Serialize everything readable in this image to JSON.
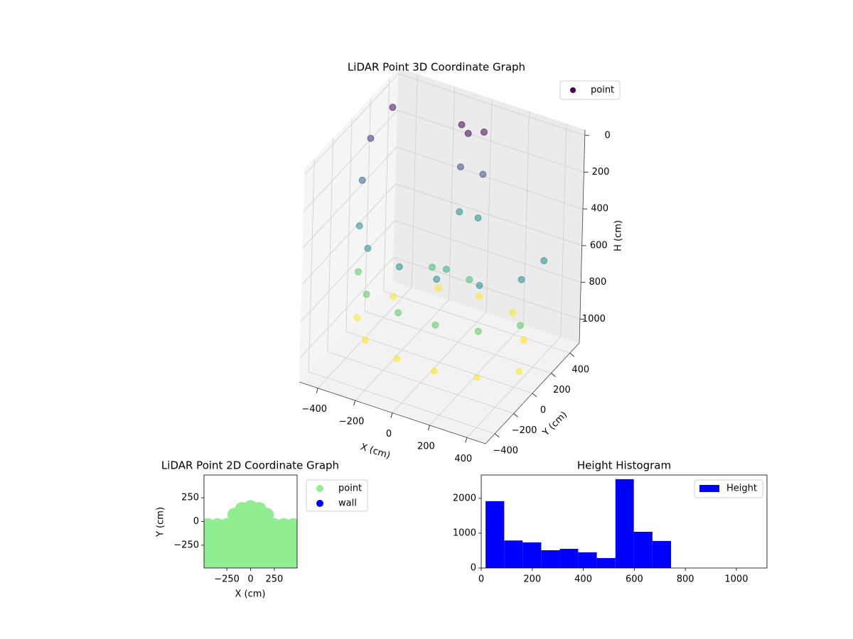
{
  "chart_data": [
    {
      "type": "scatter3d",
      "title": "LiDAR Point 3D Coordinate Graph",
      "xlabel": "X (cm)",
      "ylabel": "Y (cm)",
      "zlabel": "H (cm)",
      "xlim": [
        -500,
        500
      ],
      "ylim": [
        -500,
        500
      ],
      "zlim": [
        1130,
        -30
      ],
      "xticks": [
        {
          "value": -400,
          "label": "−400"
        },
        {
          "value": -200,
          "label": "−200"
        },
        0,
        200,
        400
      ],
      "yticks": [
        {
          "value": -400,
          "label": "−400"
        },
        {
          "value": -200,
          "label": "−200"
        },
        0,
        200,
        400
      ],
      "zticks": [
        0,
        200,
        400,
        600,
        800,
        1000
      ],
      "grid": true,
      "colormap": "viridis",
      "legend": "upper right",
      "series": [
        {
          "name": "point",
          "color": "#440154",
          "x": [
            -420,
            -420,
            -420,
            -300,
            -300,
            -300,
            -100,
            -100,
            -100,
            100,
            100,
            100,
            300,
            300,
            300,
            450,
            450,
            450,
            -470,
            -430,
            -460,
            -60,
            60,
            0,
            -60,
            60,
            -50,
            50,
            -350,
            350,
            0,
            -200,
            200,
            -100,
            100,
            0,
            470
          ],
          "y": [
            -50,
            -50,
            -50,
            -200,
            -200,
            -200,
            -260,
            -260,
            -260,
            -260,
            -260,
            -260,
            -200,
            -200,
            -200,
            -50,
            -50,
            -50,
            150,
            300,
            50,
            300,
            300,
            250,
            300,
            300,
            280,
            280,
            200,
            200,
            420,
            380,
            380,
            100,
            100,
            50,
            150
          ],
          "z": [
            500,
            750,
            1000,
            500,
            750,
            1000,
            500,
            750,
            1000,
            500,
            750,
            1000,
            500,
            750,
            1000,
            500,
            750,
            1000,
            150,
            50,
            320,
            20,
            20,
            20,
            250,
            250,
            480,
            480,
            1000,
            1000,
            1000,
            1000,
            1000,
            700,
            700,
            650,
            500
          ]
        }
      ]
    },
    {
      "type": "scatter",
      "title": "LiDAR Point 2D Coordinate Graph",
      "xlabel": "X (cm)",
      "ylabel": "Y (cm)",
      "xlim": [
        -490,
        490
      ],
      "ylim": [
        -490,
        490
      ],
      "xticks": [
        {
          "value": -250,
          "label": "−250"
        },
        0,
        250
      ],
      "yticks": [
        {
          "value": -250,
          "label": "−250"
        },
        0,
        250
      ],
      "legend": "outside right",
      "series": [
        {
          "name": "point",
          "color": "#90ee90",
          "x": [
            -450,
            -350,
            -250,
            -150,
            -50,
            50,
            150,
            250,
            350,
            450,
            -450,
            -350,
            -250,
            -150,
            -50,
            50,
            150,
            250,
            350,
            450,
            -450,
            -350,
            -250,
            -150,
            -50,
            50,
            150,
            250,
            350,
            450,
            -450,
            -350,
            -250,
            -150,
            -50,
            50,
            150,
            250,
            350,
            450,
            -450,
            -350,
            -250,
            -150,
            -50,
            50,
            150,
            250,
            350,
            450,
            0,
            -90,
            90,
            -170,
            170,
            -100,
            0,
            100
          ],
          "y": [
            -440,
            -440,
            -440,
            -440,
            -440,
            -440,
            -440,
            -440,
            -440,
            -440,
            -340,
            -340,
            -340,
            -340,
            -340,
            -340,
            -340,
            -340,
            -340,
            -340,
            -240,
            -240,
            -240,
            -240,
            -240,
            -240,
            -240,
            -240,
            -240,
            -240,
            -140,
            -140,
            -140,
            -140,
            -140,
            -140,
            -140,
            -140,
            -140,
            -140,
            -40,
            -40,
            -40,
            -40,
            -40,
            -40,
            -40,
            -40,
            -40,
            -40,
            150,
            130,
            130,
            70,
            70,
            50,
            50,
            50
          ]
        },
        {
          "name": "wall",
          "color": "#0000ff",
          "x": [],
          "y": []
        }
      ]
    },
    {
      "type": "histogram",
      "title": "Height Histogram",
      "xlim": [
        0,
        1120
      ],
      "ylim": [
        0,
        2670
      ],
      "xticks": [
        0,
        200,
        400,
        600,
        800,
        1000
      ],
      "yticks": [
        0,
        1000,
        2000
      ],
      "legend": "upper right",
      "series": [
        {
          "name": "Height",
          "color": "#0000ff",
          "bins": [
            17,
            90,
            162,
            235,
            308,
            380,
            453,
            526,
            598,
            671,
            744
          ],
          "values": [
            1918,
            790,
            735,
            510,
            550,
            450,
            285,
            2550,
            1040,
            776
          ]
        }
      ]
    }
  ]
}
